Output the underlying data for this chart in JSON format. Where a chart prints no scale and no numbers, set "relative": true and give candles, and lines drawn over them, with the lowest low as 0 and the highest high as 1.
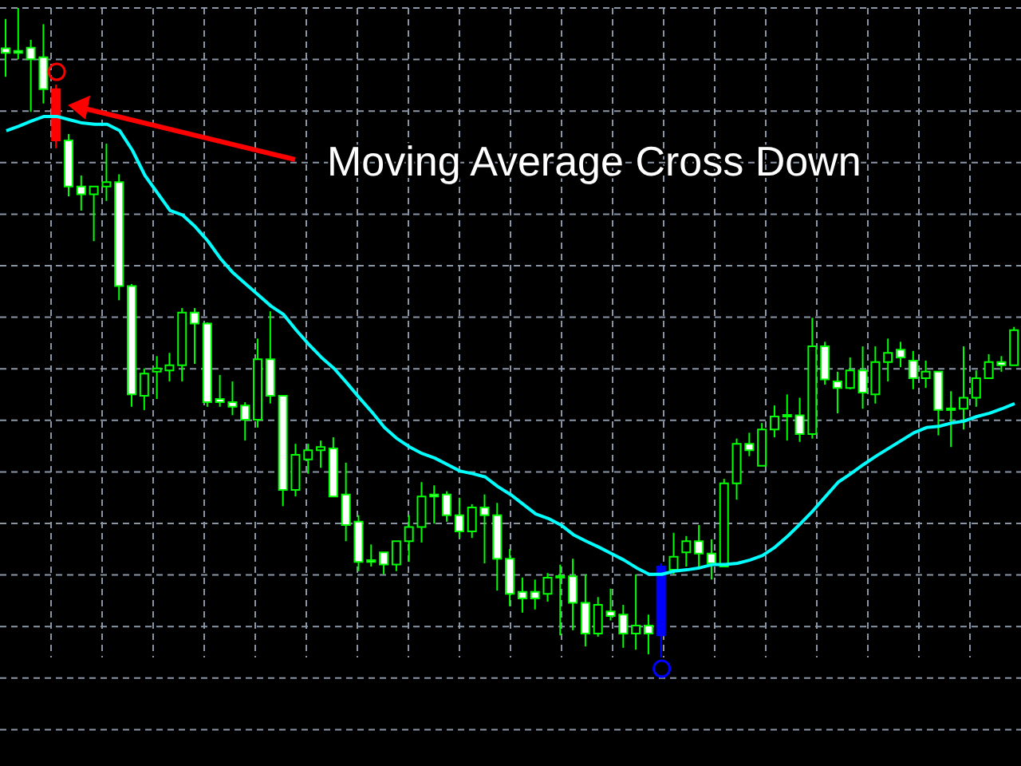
{
  "chart_data": {
    "type": "candlestick",
    "relative": true,
    "grid": true,
    "annotations": [
      "Moving Average Cross Down"
    ],
    "categories": [
      null,
      null,
      null,
      null,
      null,
      null,
      null,
      null,
      null,
      null,
      null,
      null,
      null,
      null,
      null,
      null,
      null,
      null,
      null,
      null,
      null,
      null,
      null,
      null,
      null,
      null,
      null,
      null,
      null,
      null,
      null,
      null,
      null,
      null,
      null,
      null,
      null,
      null,
      null,
      null,
      null,
      null,
      null,
      null,
      null,
      null,
      null,
      null,
      null,
      null,
      null,
      null,
      null,
      null,
      null,
      null,
      null,
      null,
      null,
      null,
      null,
      null,
      null,
      null,
      null,
      null,
      null,
      null,
      null,
      null,
      null,
      null,
      null,
      null,
      null,
      null,
      null,
      null,
      null,
      null,
      null
    ],
    "colors": [
      "#00ff00",
      "#00ff00",
      "#00ff00",
      "#00ff00",
      "#ff0000",
      "#00ff00",
      "#00ff00",
      "#00ff00",
      "#00ff00",
      "#00ff00",
      "#00ff00",
      "#00ff00",
      "#00ff00",
      "#00ff00",
      "#00ff00",
      "#00ff00",
      "#00ff00",
      "#00ff00",
      "#00ff00",
      "#00ff00",
      "#00ff00",
      "#00ff00",
      "#00ff00",
      "#00ff00",
      "#00ff00",
      "#00ff00",
      "#00ff00",
      "#00ff00",
      "#00ff00",
      "#00ff00",
      "#00ff00",
      "#00ff00",
      "#00ff00",
      "#00ff00",
      "#00ff00",
      "#00ff00",
      "#00ff00",
      "#00ff00",
      "#00ff00",
      "#00ff00",
      "#00ff00",
      "#00ff00",
      "#00ff00",
      "#00ff00",
      "#00ff00",
      "#00ff00",
      "#00ff00",
      "#00ff00",
      "#00ff00",
      "#00ff00",
      "#00ff00",
      "#00ff00",
      "#0000ff",
      "#00ff00",
      "#00ff00",
      "#00ff00",
      "#00ff00",
      "#00ff00",
      "#00ff00",
      "#00ff00",
      "#00ff00",
      "#00ff00",
      "#00ff00",
      "#00ff00",
      "#00ff00",
      "#00ff00",
      "#00ff00",
      "#00ff00",
      "#00ff00",
      "#00ff00",
      "#00ff00",
      "#00ff00",
      "#00ff00",
      "#00ff00",
      "#00ff00",
      "#00ff00",
      "#00ff00",
      "#00ff00",
      "#00ff00",
      "#00ff00",
      "#00ff00"
    ],
    "ohlc": [
      [
        0.938,
        0.983,
        0.894,
        0.931
      ],
      [
        0.934,
        1,
        0.921,
        0.931
      ],
      [
        0.939,
        0.951,
        0.84,
        0.921
      ],
      [
        0.924,
        0.975,
        0.853,
        0.875
      ],
      [
        0.875,
        0.882,
        0.784,
        0.796
      ],
      [
        0.796,
        0.806,
        0.71,
        0.725
      ],
      [
        0.725,
        0.742,
        0.688,
        0.713
      ],
      [
        0.713,
        0.725,
        0.641,
        0.725
      ],
      [
        0.725,
        0.791,
        0.703,
        0.732
      ],
      [
        0.732,
        0.744,
        0.55,
        0.572
      ],
      [
        0.572,
        0.575,
        0.386,
        0.405
      ],
      [
        0.403,
        0.445,
        0.381,
        0.437
      ],
      [
        0.44,
        0.464,
        0.398,
        0.445
      ],
      [
        0.442,
        0.469,
        0.425,
        0.45
      ],
      [
        0.45,
        0.538,
        0.425,
        0.531
      ],
      [
        0.531,
        0.538,
        0.452,
        0.514
      ],
      [
        0.514,
        0.516,
        0.386,
        0.393
      ],
      [
        0.398,
        0.435,
        0.386,
        0.393
      ],
      [
        0.393,
        0.425,
        0.373,
        0.386
      ],
      [
        0.388,
        0.393,
        0.334,
        0.366
      ],
      [
        0.366,
        0.491,
        0.354,
        0.459
      ],
      [
        0.459,
        0.533,
        0.391,
        0.403
      ],
      [
        0.403,
        0.403,
        0.233,
        0.258
      ],
      [
        0.258,
        0.329,
        0.248,
        0.312
      ],
      [
        0.305,
        0.329,
        0.283,
        0.319
      ],
      [
        0.319,
        0.334,
        0.292,
        0.324
      ],
      [
        0.322,
        0.339,
        0.248,
        0.248
      ],
      [
        0.251,
        0.3,
        0.179,
        0.204
      ],
      [
        0.209,
        0.219,
        0.133,
        0.147
      ],
      [
        0.15,
        0.174,
        0.14,
        0.147
      ],
      [
        0.162,
        0.162,
        0.128,
        0.143
      ],
      [
        0.143,
        0.179,
        0.133,
        0.179
      ],
      [
        0.179,
        0.219,
        0.147,
        0.201
      ],
      [
        0.201,
        0.27,
        0.177,
        0.248
      ],
      [
        0.251,
        0.265,
        0.206,
        0.248
      ],
      [
        0.251,
        0.256,
        0.209,
        0.219
      ],
      [
        0.219,
        0.246,
        0.184,
        0.194
      ],
      [
        0.194,
        0.236,
        0.184,
        0.231
      ],
      [
        0.231,
        0.251,
        0.145,
        0.219
      ],
      [
        0.219,
        0.238,
        0.103,
        0.152
      ],
      [
        0.152,
        0.167,
        0.079,
        0.098
      ],
      [
        0.101,
        0.123,
        0.069,
        0.091
      ],
      [
        0.101,
        0.12,
        0.074,
        0.091
      ],
      [
        0.098,
        0.13,
        0.086,
        0.123
      ],
      [
        0.125,
        0.143,
        0.034,
        0.123
      ],
      [
        0.125,
        0.152,
        0.042,
        0.084
      ],
      [
        0.084,
        0.128,
        0.017,
        0.037
      ],
      [
        0.037,
        0.093,
        0.032,
        0.081
      ],
      [
        0.071,
        0.106,
        0.057,
        0.064
      ],
      [
        0.066,
        0.081,
        0.015,
        0.037
      ],
      [
        0.037,
        0.128,
        0.012,
        0.049
      ],
      [
        0.049,
        0.066,
        0.005,
        0.037
      ],
      [
        0.034,
        0.145,
        0,
        0.14
      ],
      [
        0.135,
        0.192,
        0.128,
        0.155
      ],
      [
        0.162,
        0.187,
        0.14,
        0.179
      ],
      [
        0.179,
        0.204,
        0.14,
        0.16
      ],
      [
        0.16,
        0.182,
        0.12,
        0.145
      ],
      [
        0.14,
        0.275,
        0.14,
        0.268
      ],
      [
        0.268,
        0.337,
        0.243,
        0.329
      ],
      [
        0.329,
        0.346,
        0.31,
        0.319
      ],
      [
        0.295,
        0.361,
        0.295,
        0.351
      ],
      [
        0.351,
        0.388,
        0.339,
        0.371
      ],
      [
        0.373,
        0.405,
        0.334,
        0.371
      ],
      [
        0.373,
        0.4,
        0.332,
        0.344
      ],
      [
        0.344,
        0.523,
        0.337,
        0.479
      ],
      [
        0.479,
        0.486,
        0.42,
        0.428
      ],
      [
        0.425,
        0.44,
        0.376,
        0.415
      ],
      [
        0.415,
        0.462,
        0.413,
        0.442
      ],
      [
        0.442,
        0.479,
        0.383,
        0.408
      ],
      [
        0.405,
        0.479,
        0.391,
        0.455
      ],
      [
        0.455,
        0.491,
        0.425,
        0.469
      ],
      [
        0.474,
        0.486,
        0.447,
        0.462
      ],
      [
        0.457,
        0.472,
        0.413,
        0.43
      ],
      [
        0.43,
        0.457,
        0.415,
        0.44
      ],
      [
        0.44,
        0.44,
        0.342,
        0.381
      ],
      [
        0.383,
        0.41,
        0.324,
        0.381
      ],
      [
        0.383,
        0.479,
        0.351,
        0.4
      ],
      [
        0.4,
        0.442,
        0.386,
        0.43
      ],
      [
        0.43,
        0.467,
        0.43,
        0.455
      ],
      [
        0.455,
        0.464,
        0.44,
        0.45
      ],
      [
        0.45,
        0.509,
        0.45,
        0.504
      ]
    ],
    "series": [
      {
        "type": "line",
        "color": "#00ffff",
        "values": [
          0.811,
          0.818,
          0.826,
          0.833,
          0.833,
          0.828,
          0.823,
          0.821,
          0.821,
          0.811,
          0.781,
          0.742,
          0.715,
          0.688,
          0.681,
          0.663,
          0.641,
          0.614,
          0.592,
          0.575,
          0.558,
          0.541,
          0.528,
          0.504,
          0.482,
          0.462,
          0.445,
          0.423,
          0.4,
          0.378,
          0.354,
          0.337,
          0.324,
          0.314,
          0.307,
          0.297,
          0.287,
          0.283,
          0.278,
          0.263,
          0.251,
          0.236,
          0.221,
          0.214,
          0.204,
          0.189,
          0.179,
          0.17,
          0.16,
          0.15,
          0.138,
          0.128,
          0.128,
          0.133,
          0.135,
          0.138,
          0.143,
          0.143,
          0.145,
          0.15,
          0.157,
          0.17,
          0.187,
          0.206,
          0.226,
          0.248,
          0.27,
          0.283,
          0.297,
          0.31,
          0.322,
          0.334,
          0.346,
          0.354,
          0.356,
          0.361,
          0.364,
          0.371,
          0.376,
          0.383,
          0.391
        ]
      }
    ]
  }
}
